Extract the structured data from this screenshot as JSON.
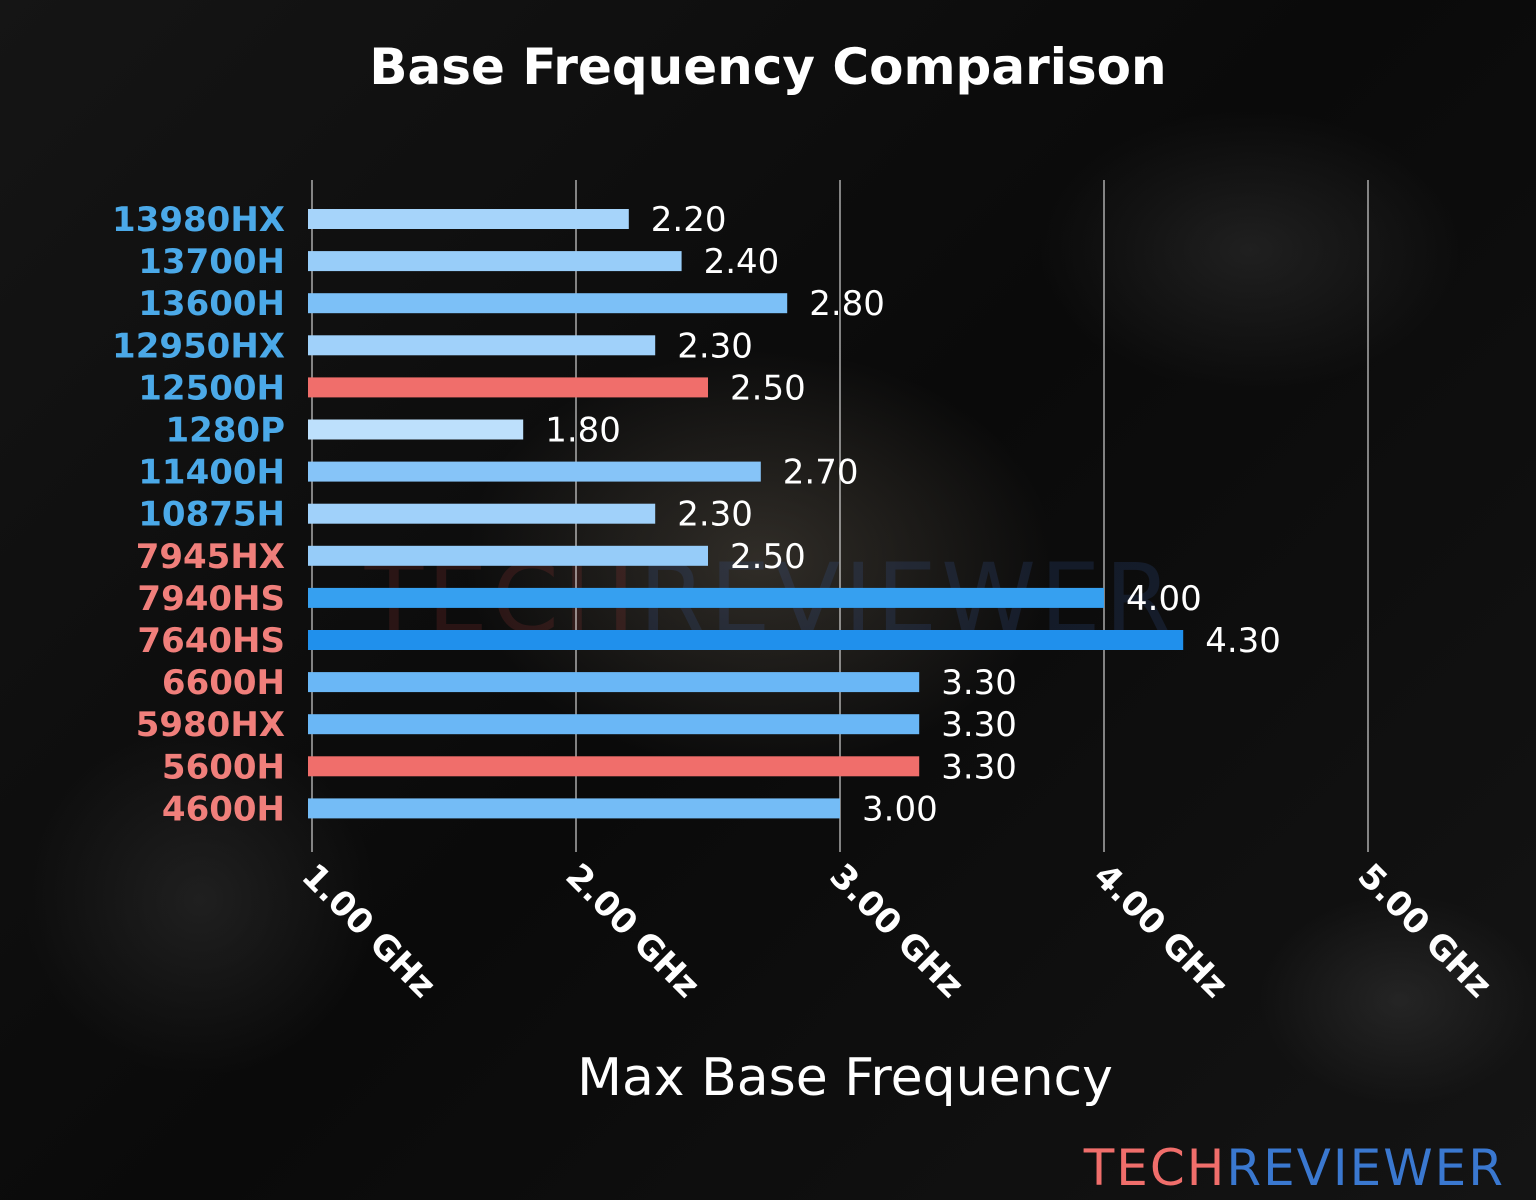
{
  "chart_data": {
    "type": "bar",
    "orientation": "horizontal",
    "title": "Base Frequency Comparison",
    "xlabel": "Max Base Frequency",
    "ylabel": "",
    "xlim": [
      0.98,
      5.6
    ],
    "grid": true,
    "xticks": [
      1,
      2,
      3,
      4,
      5
    ],
    "xtick_labels": [
      "1.00 GHz",
      "2.00 GHz",
      "3.00 GHz",
      "4.00 GHz",
      "5.00 GHz"
    ],
    "categories": [
      "13980HX",
      "13700H",
      "13600H",
      "12950HX",
      "12500H",
      "1280P",
      "11400H",
      "10875H",
      "7945HX",
      "7940HS",
      "7640HS",
      "6600H",
      "5980HX",
      "5600H",
      "4600H"
    ],
    "values": [
      2.2,
      2.4,
      2.8,
      2.3,
      2.5,
      1.8,
      2.7,
      2.3,
      2.5,
      4.0,
      4.3,
      3.3,
      3.3,
      3.3,
      3.0
    ],
    "data_labels": [
      "2.20",
      "2.40",
      "2.80",
      "2.30",
      "2.50",
      "1.80",
      "2.70",
      "2.30",
      "2.50",
      "4.00",
      "4.30",
      "3.30",
      "3.30",
      "3.30",
      "3.00"
    ],
    "bar_colors": [
      "#a6d4fa",
      "#98cdf9",
      "#7cc0f7",
      "#a0d1fa",
      "#f06e6b",
      "#bde0fc",
      "#86c4f8",
      "#a0d1fa",
      "#96ccf9",
      "#36a0f0",
      "#2090ec",
      "#6ab7f6",
      "#6ab7f6",
      "#f06e6b",
      "#74bcf6"
    ],
    "label_colors": [
      "#4ba9e8",
      "#4ba9e8",
      "#4ba9e8",
      "#4ba9e8",
      "#4ba9e8",
      "#4ba9e8",
      "#4ba9e8",
      "#4ba9e8",
      "#f07f7b",
      "#f07f7b",
      "#f07f7b",
      "#f07f7b",
      "#f07f7b",
      "#f07f7b",
      "#f07f7b"
    ]
  },
  "branding": {
    "logo_part1": "TECH",
    "logo_part2": "REVIEWER",
    "color1": "#f06e6b",
    "color2": "#3a78d0"
  }
}
